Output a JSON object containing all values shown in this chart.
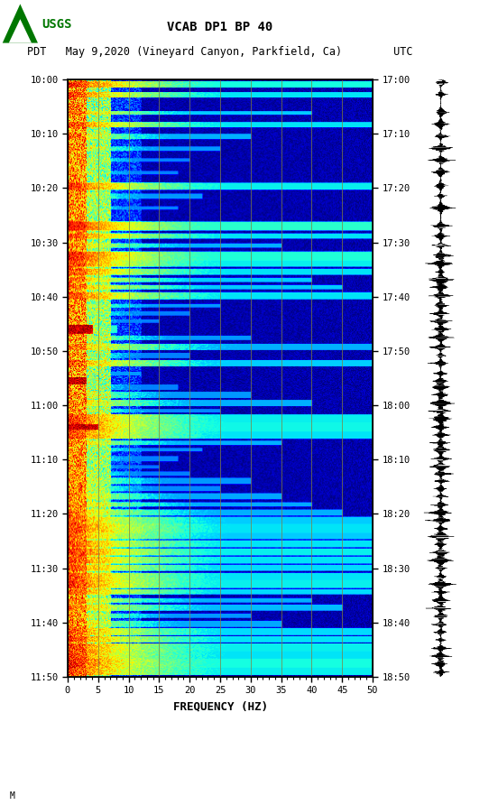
{
  "title_line1": "VCAB DP1 BP 40",
  "title_line2": "PDT   May 9,2020 (Vineyard Canyon, Parkfield, Ca)        UTC",
  "xlabel": "FREQUENCY (HZ)",
  "yticks_pdt": [
    "10:00",
    "10:10",
    "10:20",
    "10:30",
    "10:40",
    "10:50",
    "11:00",
    "11:10",
    "11:20",
    "11:30",
    "11:40",
    "11:50"
  ],
  "yticks_utc": [
    "17:00",
    "17:10",
    "17:20",
    "17:30",
    "17:40",
    "17:50",
    "18:00",
    "18:10",
    "18:20",
    "18:30",
    "18:40",
    "18:50"
  ],
  "freq_gridlines": [
    5,
    10,
    15,
    20,
    25,
    30,
    35,
    40,
    45
  ],
  "freq_gridline_color": "#808040",
  "fig_width": 5.52,
  "fig_height": 8.92,
  "n_time_steps": 660,
  "n_freq_bins": 340,
  "random_seed": 42
}
